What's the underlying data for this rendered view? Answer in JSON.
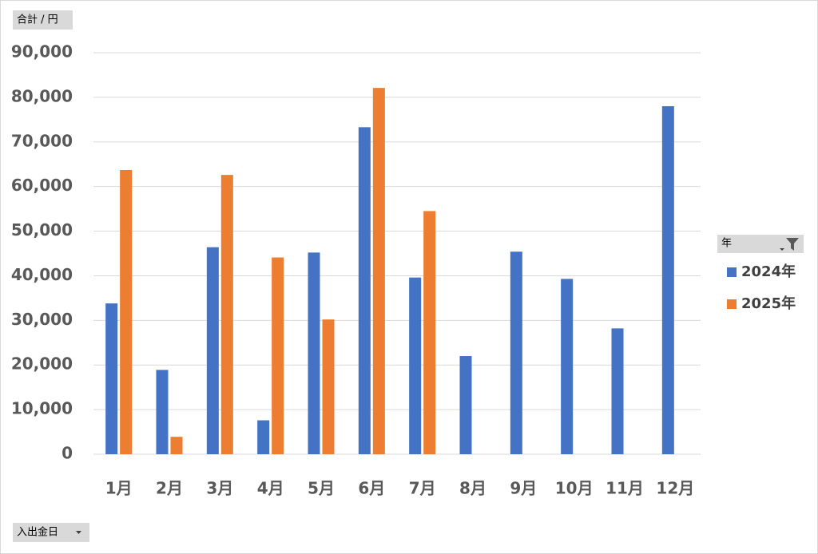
{
  "chart_data": {
    "type": "bar",
    "field_buttons": {
      "values": "合計 / 円",
      "legend": "年",
      "axis": "入出金日"
    },
    "categories": [
      "1月",
      "2月",
      "3月",
      "4月",
      "5月",
      "6月",
      "7月",
      "8月",
      "9月",
      "10月",
      "11月",
      "12月"
    ],
    "series": [
      {
        "name": "2024年",
        "color": "#4472c4",
        "values": [
          33800,
          18900,
          46400,
          7600,
          45200,
          73300,
          39600,
          22000,
          45400,
          39300,
          28200,
          78000
        ]
      },
      {
        "name": "2025年",
        "color": "#ed7d31",
        "values": [
          63700,
          3900,
          62600,
          44100,
          30200,
          82100,
          54500,
          null,
          null,
          null,
          null,
          null
        ]
      }
    ],
    "ylim": [
      0,
      90000
    ],
    "yticks": [
      0,
      {
        "value": 10000,
        "label": "10,000"
      },
      {
        "value": 20000,
        "label": "20,000"
      },
      {
        "value": 30000,
        "label": "30,000"
      },
      {
        "value": 40000,
        "label": "40,000"
      },
      {
        "value": 50000,
        "label": "50,000"
      },
      {
        "value": 60000,
        "label": "60,000"
      },
      {
        "value": 70000,
        "label": "70,000"
      },
      {
        "value": 80000,
        "label": "80,000"
      },
      {
        "value": 90000,
        "label": "90,000"
      }
    ],
    "grid": true
  }
}
